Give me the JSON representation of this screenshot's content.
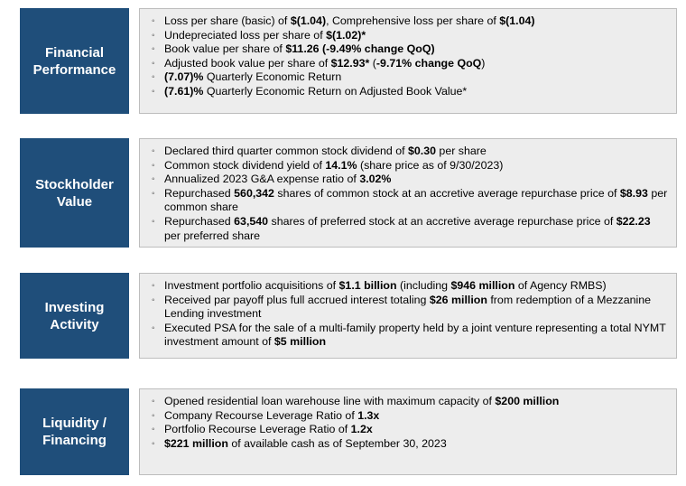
{
  "sections": [
    {
      "label": "Financial\nPerformance",
      "items": [
        [
          [
            "Loss per share (basic) of ",
            false
          ],
          [
            "$(1.04)",
            true
          ],
          [
            ", Comprehensive loss per share of ",
            false
          ],
          [
            "$(1.04)",
            true
          ]
        ],
        [
          [
            "Undepreciated loss per share of ",
            false
          ],
          [
            "$(1.02)*",
            true
          ]
        ],
        [
          [
            "Book value per share of ",
            false
          ],
          [
            "$11.26 (-9.49% change QoQ)",
            true
          ]
        ],
        [
          [
            "Adjusted book value per share of ",
            false
          ],
          [
            "$12.93*",
            true
          ],
          [
            " (",
            false
          ],
          [
            "-9.71% change QoQ",
            true
          ],
          [
            ")",
            false
          ]
        ],
        [
          [
            "(7.07)%",
            true
          ],
          [
            " Quarterly Economic Return",
            false
          ]
        ],
        [
          [
            "(7.61)%",
            true
          ],
          [
            " Quarterly Economic Return on Adjusted Book Value*",
            false
          ]
        ]
      ]
    },
    {
      "label": "Stockholder\nValue",
      "items": [
        [
          [
            "Declared third quarter common stock dividend of ",
            false
          ],
          [
            "$0.30",
            true
          ],
          [
            " per share",
            false
          ]
        ],
        [
          [
            "Common stock dividend yield of ",
            false
          ],
          [
            "14.1%",
            true
          ],
          [
            " (share price as of 9/30/2023)",
            false
          ]
        ],
        [
          [
            "Annualized 2023 G&A expense ratio of ",
            false
          ],
          [
            "3.02%",
            true
          ]
        ],
        [
          [
            "Repurchased ",
            false
          ],
          [
            "560,342",
            true
          ],
          [
            " shares of common stock at an accretive average repurchase price of ",
            false
          ],
          [
            "$8.93",
            true
          ],
          [
            " per common share",
            false
          ]
        ],
        [
          [
            "Repurchased ",
            false
          ],
          [
            "63,540",
            true
          ],
          [
            " shares of preferred stock at an accretive average repurchase price of ",
            false
          ],
          [
            "$22.23",
            true
          ],
          [
            " per preferred share",
            false
          ]
        ]
      ]
    },
    {
      "label": "Investing\nActivity",
      "items": [
        [
          [
            "Investment portfolio acquisitions of ",
            false
          ],
          [
            "$1.1 billion",
            true
          ],
          [
            " (including ",
            false
          ],
          [
            "$946 million",
            true
          ],
          [
            " of Agency RMBS)",
            false
          ]
        ],
        [
          [
            "Received par payoff plus full accrued interest totaling ",
            false
          ],
          [
            "$26 million",
            true
          ],
          [
            " from redemption of a Mezzanine Lending investment",
            false
          ]
        ],
        [
          [
            "Executed PSA for the sale of a multi-family property held by a joint venture representing a total NYMT investment amount of ",
            false
          ],
          [
            "$5 million",
            true
          ]
        ]
      ]
    },
    {
      "label": "Liquidity /\nFinancing",
      "items": [
        [
          [
            "Opened residential loan warehouse line with maximum capacity of ",
            false
          ],
          [
            "$200 million",
            true
          ]
        ],
        [
          [
            "Company Recourse Leverage Ratio of ",
            false
          ],
          [
            "1.3x",
            true
          ]
        ],
        [
          [
            "Portfolio Recourse Leverage Ratio of ",
            false
          ],
          [
            "1.2x",
            true
          ]
        ],
        [
          [
            "$221 million",
            true
          ],
          [
            " of available cash as of September 30, 2023",
            false
          ]
        ]
      ]
    }
  ]
}
